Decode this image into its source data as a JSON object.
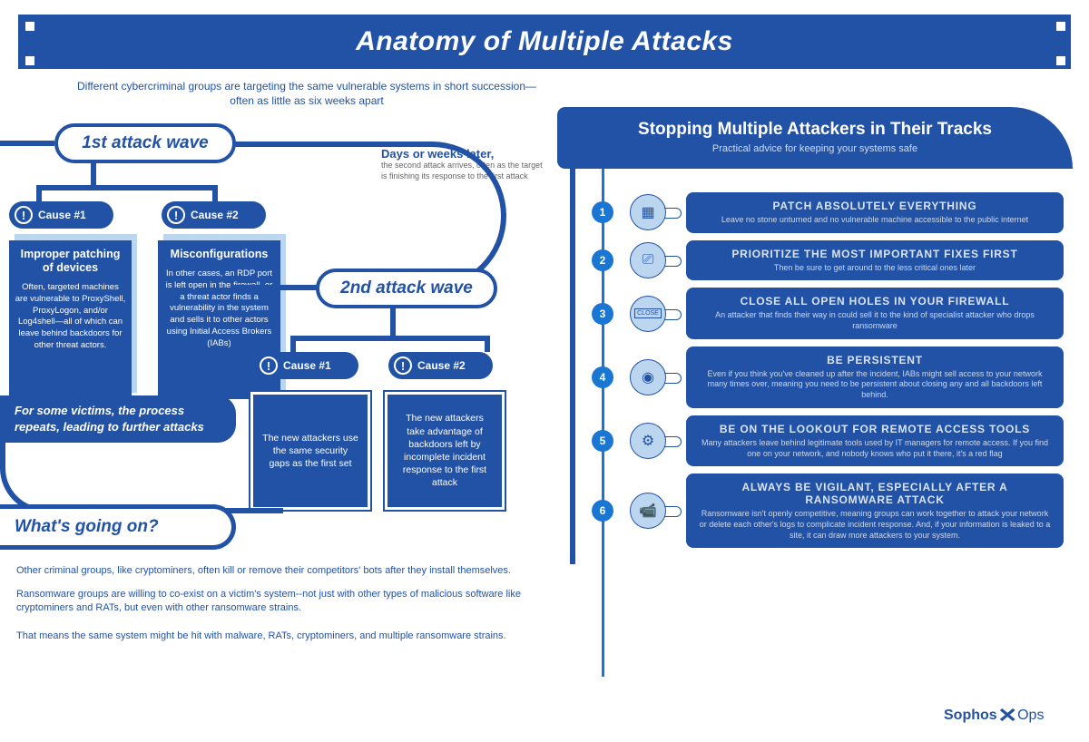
{
  "title": "Anatomy of Multiple Attacks",
  "intro": "Different cybercriminal groups are targeting the same vulnerable systems in short succession—often as little as six weeks apart",
  "colors": {
    "primary": "#2152a6",
    "accent": "#1976d2",
    "light": "#bcd6ef",
    "white": "#ffffff",
    "grey": "#666666"
  },
  "wave1": {
    "label": "1st attack wave",
    "causes": [
      {
        "pill": "Cause #1",
        "title": "Improper patching of devices",
        "body": "Often, targeted machines are vulnerable to ProxyShell, ProxyLogon, and/or Log4shell—all of which can leave behind backdoors for other threat actors."
      },
      {
        "pill": "Cause #2",
        "title": "Misconfigurations",
        "body": "In other cases, an RDP port is left open in the firewall, or a threat actor finds a vulnerability in the system and sells it to other actors using Initial Access Brokers (IABs)"
      }
    ]
  },
  "later": {
    "title": "Days or weeks later,",
    "body": "the second attack arrives, often as the target is finishing its response to the first attack"
  },
  "wave2": {
    "label": "2nd attack wave",
    "causes": [
      {
        "pill": "Cause #1",
        "body": "The new attackers use the same security gaps as the first set"
      },
      {
        "pill": "Cause #2",
        "body": "The new attackers take advantage of backdoors left by incomplete incident response to the first attack"
      }
    ]
  },
  "repeat": "For some victims, the process repeats, leading to further attacks",
  "whats": "What's going on?",
  "paras": [
    "Other criminal groups, like cryptominers, often kill or remove their competitors' bots after they install themselves.",
    "Ransomware groups are willing to co-exist on a victim's system--not just with other types of malicious software like cryptominers and RATs, but even with other ransomware strains.",
    "That means the same system might be hit with malware, RATs, cryptominers, and multiple ransomware strains."
  ],
  "right": {
    "title": "Stopping Multiple Attackers in Their Tracks",
    "subtitle": "Practical advice for keeping your systems safe",
    "tips": [
      {
        "n": "1",
        "icon": "▦",
        "title": "PATCH ABSOLUTELY EVERYTHING",
        "body": "Leave no stone unturned and no vulnerable machine accessible to the public internet"
      },
      {
        "n": "2",
        "icon": "⎚",
        "title": "PRIORITIZE THE MOST IMPORTANT FIXES FIRST",
        "body": "Then be sure to get around to the less critical ones later"
      },
      {
        "n": "3",
        "icon": "CLOSE",
        "title": "CLOSE ALL OPEN HOLES  IN YOUR FIREWALL",
        "body": "An attacker that finds their way in could sell it to the kind of specialist attacker who drops ransomware"
      },
      {
        "n": "4",
        "icon": "◉",
        "title": "BE PERSISTENT",
        "body": "Even if you think you've cleaned up after the incident, IABs might sell access to your network many times over, meaning you need to be persistent about closing any and all backdoors left behind."
      },
      {
        "n": "5",
        "icon": "⚙",
        "title": "BE ON THE LOOKOUT FOR REMOTE ACCESS TOOLS",
        "body": "Many attackers leave behind legitimate tools used by IT managers for remote access. If you find one on your network, and nobody knows who put it there, it's a red flag"
      },
      {
        "n": "6",
        "icon": "📹",
        "title": "ALWAYS BE VIGILANT, ESPECIALLY AFTER A RANSOMWARE ATTACK",
        "body": "Ransomware isn't openly competitive, meaning groups can work together to attack your network or delete each other's logs to complicate incident response. And, if your information is leaked to a site, it can draw more attackers to your system."
      }
    ]
  },
  "logo": {
    "brand": "Sophos",
    "suffix": "Ops"
  }
}
